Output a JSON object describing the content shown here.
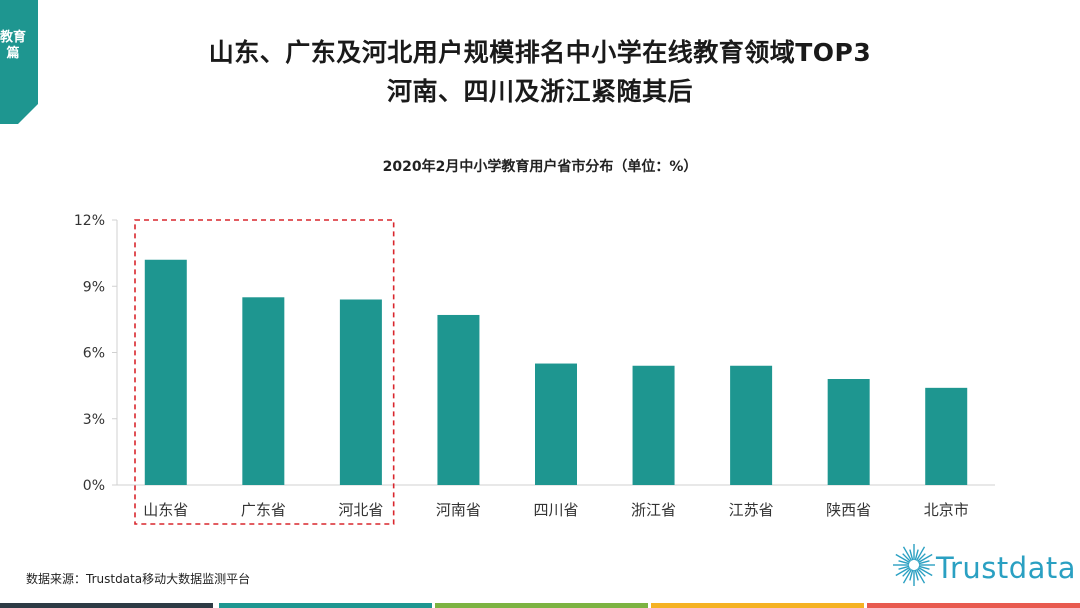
{
  "header": {
    "section_tab": "教育篇",
    "title_line1": "山东、广东及河北用户规模排名中小学在线教育领域TOP3",
    "title_line2": "河南、四川及浙江紧随其后"
  },
  "chart_data": {
    "type": "bar",
    "title": "2020年2月中小学教育用户省市分布（单位：%）",
    "categories": [
      "山东省",
      "广东省",
      "河北省",
      "河南省",
      "四川省",
      "浙江省",
      "江苏省",
      "陕西省",
      "北京市"
    ],
    "values": [
      10.2,
      8.5,
      8.4,
      7.7,
      5.5,
      5.4,
      5.4,
      4.8,
      4.4
    ],
    "ylim": [
      0,
      12
    ],
    "yticks": [
      0,
      3,
      6,
      9,
      12
    ],
    "ytick_labels": [
      "0%",
      "3%",
      "6%",
      "9%",
      "12%"
    ],
    "grid": false,
    "bar_color": "#1e9690",
    "highlight": {
      "from": 0,
      "to": 2,
      "style": "dashed",
      "color": "#d9262d"
    }
  },
  "footer": {
    "source": "数据来源：Trustdata移动大数据监测平台",
    "logo_text": "Trustdata",
    "bar_colors": [
      "#2d3a44",
      "#1e9690",
      "#7cb342",
      "#f5b223",
      "#e85a4f"
    ]
  },
  "colors": {
    "accent": "#1e9690",
    "logo": "#2aa0c2"
  }
}
